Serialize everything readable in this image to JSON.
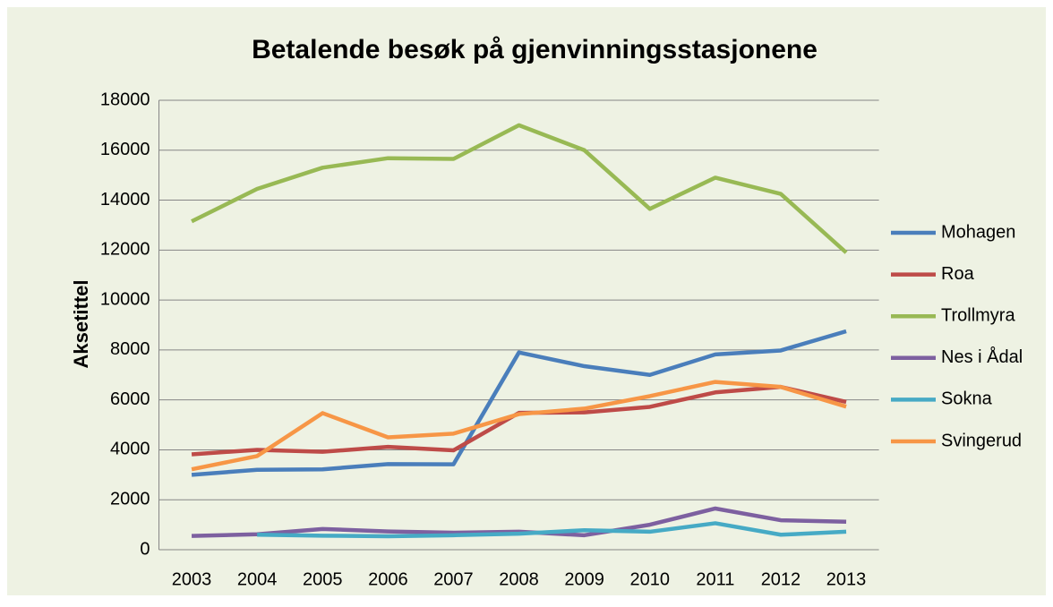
{
  "chart_data": {
    "type": "line",
    "title": "Betalende besøk på gjenvinningsstasjonene",
    "y_label": "Aksetittel",
    "categories": [
      "2003",
      "2004",
      "2005",
      "2006",
      "2007",
      "2008",
      "2009",
      "2010",
      "2011",
      "2012",
      "2013"
    ],
    "series": [
      {
        "name": "Mohagen",
        "color": "#4a7ebb",
        "values": [
          3000,
          3200,
          3220,
          3430,
          3420,
          7900,
          7350,
          7000,
          7820,
          7980,
          8750
        ]
      },
      {
        "name": "Roa",
        "color": "#be4b48",
        "values": [
          3820,
          4000,
          3920,
          4120,
          3980,
          5480,
          5500,
          5720,
          6300,
          6520,
          5920
        ]
      },
      {
        "name": "Trollmyra",
        "color": "#98b954",
        "values": [
          13150,
          14450,
          15300,
          15680,
          15650,
          17000,
          16000,
          13650,
          14900,
          14250,
          11900
        ]
      },
      {
        "name": "Nes i Ådal",
        "color": "#7d60a0",
        "values": [
          550,
          620,
          830,
          730,
          680,
          720,
          580,
          1000,
          1650,
          1180,
          1120
        ]
      },
      {
        "name": "Sokna",
        "color": "#46aac5",
        "values": [
          null,
          600,
          560,
          540,
          580,
          640,
          780,
          720,
          1060,
          600,
          720
        ]
      },
      {
        "name": "Svingerud",
        "color": "#f79646",
        "values": [
          3220,
          3750,
          5470,
          4500,
          4650,
          5430,
          5650,
          6150,
          6720,
          6520,
          5730
        ]
      }
    ],
    "ylim": [
      0,
      18000
    ],
    "yticks": [
      0,
      2000,
      4000,
      6000,
      8000,
      10000,
      12000,
      14000,
      16000,
      18000
    ],
    "grid": true,
    "legend": "right"
  }
}
